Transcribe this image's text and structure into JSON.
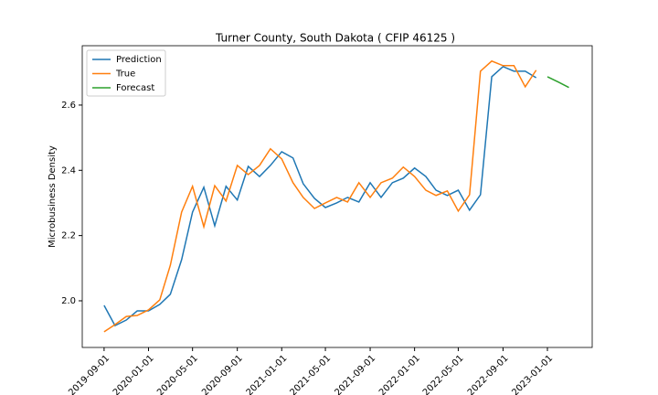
{
  "chart_data": {
    "type": "line",
    "title": "Turner County, South Dakota ( CFIP 46125 )",
    "y_label": "Microbusiness Density",
    "legend": "upper left",
    "grid": false,
    "series": [
      {
        "name": "Prediction",
        "color": "#1f77b4",
        "x": [
          "2019-09-01",
          "2019-10-01",
          "2019-11-01",
          "2019-12-01",
          "2020-01-01",
          "2020-02-01",
          "2020-03-01",
          "2020-04-01",
          "2020-05-01",
          "2020-06-01",
          "2020-07-01",
          "2020-08-01",
          "2020-09-01",
          "2020-10-01",
          "2020-11-01",
          "2020-12-01",
          "2021-01-01",
          "2021-02-01",
          "2021-03-01",
          "2021-04-01",
          "2021-05-01",
          "2021-06-01",
          "2021-07-01",
          "2021-08-01",
          "2021-09-01",
          "2021-10-01",
          "2021-11-01",
          "2021-12-01",
          "2022-01-01",
          "2022-02-01",
          "2022-03-01",
          "2022-04-01",
          "2022-05-01",
          "2022-06-01",
          "2022-07-01",
          "2022-08-01",
          "2022-09-01",
          "2022-10-01",
          "2022-11-01",
          "2022-12-01"
        ],
        "values": [
          1.986,
          1.924,
          1.941,
          1.969,
          1.969,
          1.989,
          2.02,
          2.126,
          2.272,
          2.348,
          2.23,
          2.351,
          2.309,
          2.412,
          2.381,
          2.415,
          2.457,
          2.438,
          2.359,
          2.314,
          2.286,
          2.3,
          2.317,
          2.303,
          2.362,
          2.317,
          2.362,
          2.376,
          2.407,
          2.381,
          2.339,
          2.323,
          2.339,
          2.278,
          2.325,
          2.687,
          2.718,
          2.704,
          2.704,
          2.684
        ]
      },
      {
        "name": "True",
        "color": "#ff7f0e",
        "x": [
          "2019-09-01",
          "2019-10-01",
          "2019-11-01",
          "2019-12-01",
          "2020-01-01",
          "2020-02-01",
          "2020-03-01",
          "2020-04-01",
          "2020-05-01",
          "2020-06-01",
          "2020-07-01",
          "2020-08-01",
          "2020-09-01",
          "2020-10-01",
          "2020-11-01",
          "2020-12-01",
          "2021-01-01",
          "2021-02-01",
          "2021-03-01",
          "2021-04-01",
          "2021-05-01",
          "2021-06-01",
          "2021-07-01",
          "2021-08-01",
          "2021-09-01",
          "2021-10-01",
          "2021-11-01",
          "2021-12-01",
          "2022-01-01",
          "2022-02-01",
          "2022-03-01",
          "2022-04-01",
          "2022-05-01",
          "2022-06-01",
          "2022-07-01",
          "2022-08-01",
          "2022-09-01",
          "2022-10-01",
          "2022-11-01",
          "2022-12-01"
        ],
        "values": [
          1.905,
          1.927,
          1.952,
          1.955,
          1.972,
          2.003,
          2.109,
          2.272,
          2.351,
          2.227,
          2.353,
          2.306,
          2.415,
          2.387,
          2.415,
          2.466,
          2.435,
          2.362,
          2.317,
          2.283,
          2.3,
          2.317,
          2.303,
          2.362,
          2.317,
          2.362,
          2.376,
          2.41,
          2.381,
          2.339,
          2.323,
          2.337,
          2.275,
          2.325,
          2.704,
          2.735,
          2.721,
          2.721,
          2.656,
          2.707
        ]
      },
      {
        "name": "Forecast",
        "color": "#2ca02c",
        "x": [
          "2023-01-01",
          "2023-02-01",
          "2023-03-01"
        ],
        "values": [
          2.687,
          2.67,
          2.654
        ]
      }
    ],
    "xlim": [
      "2019-07-03",
      "2023-05-04"
    ],
    "xticks": [
      "2019-09-01",
      "2020-01-01",
      "2020-05-01",
      "2020-09-01",
      "2021-01-01",
      "2021-05-01",
      "2021-09-01",
      "2022-01-01",
      "2022-05-01",
      "2022-09-01",
      "2023-01-01"
    ],
    "ylim": [
      1.857,
      2.782
    ],
    "yticks": [
      {
        "value": 2.0,
        "label": "2.0"
      },
      {
        "value": 2.2,
        "label": "2.2"
      },
      {
        "value": 2.4,
        "label": "2.4"
      },
      {
        "value": 2.6,
        "label": "2.6"
      }
    ]
  }
}
